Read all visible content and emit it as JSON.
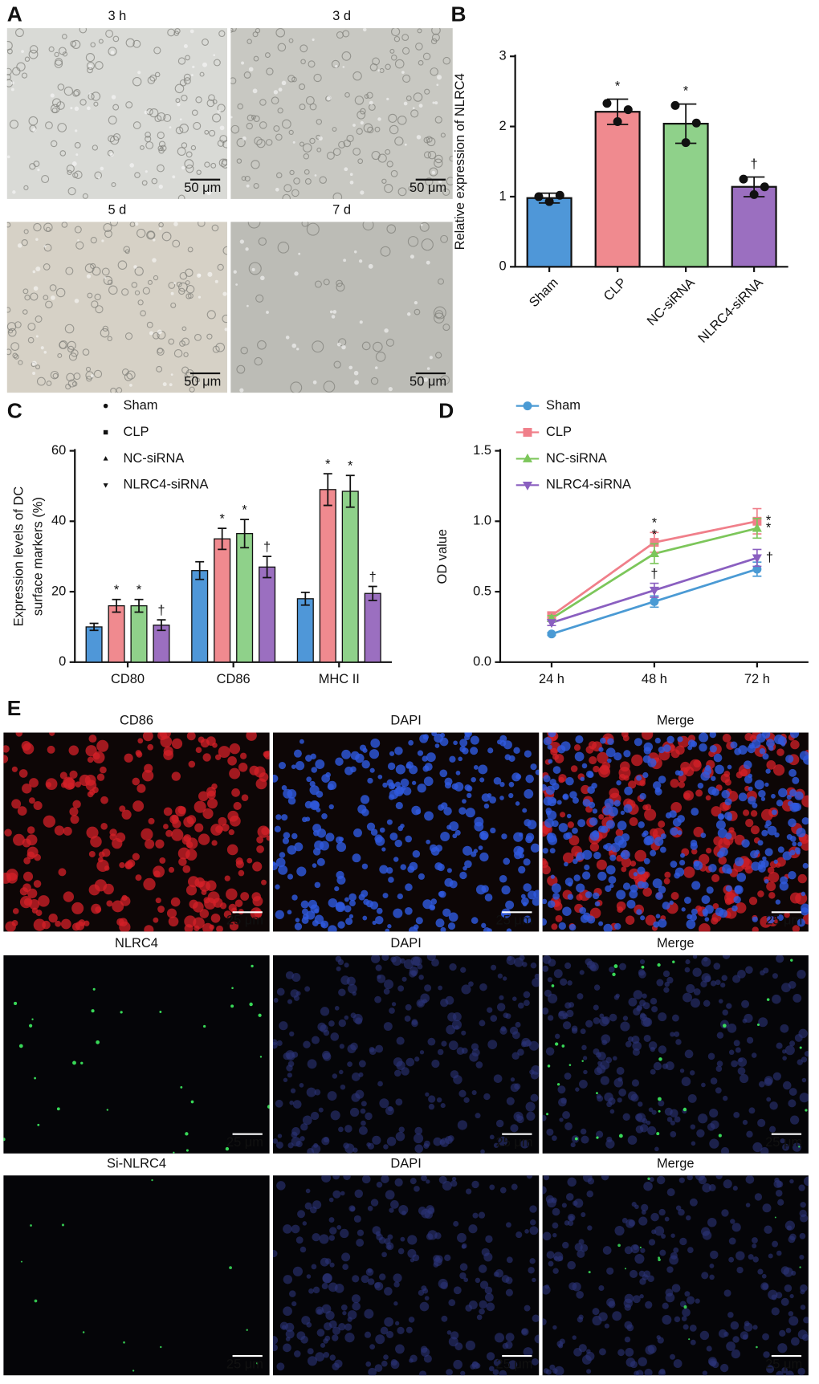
{
  "panel_a": {
    "label": "A",
    "images": [
      {
        "title": "3 h",
        "scale_bar": "50 μm"
      },
      {
        "title": "3 d",
        "scale_bar": "50 μm"
      },
      {
        "title": "5 d",
        "scale_bar": "50 μm"
      },
      {
        "title": "7 d",
        "scale_bar": "50 μm"
      }
    ]
  },
  "panel_e": {
    "label": "E",
    "rows": [
      [
        {
          "title": "CD86",
          "scale_bar": "25 μm"
        },
        {
          "title": "DAPI",
          "scale_bar": "25 μm"
        },
        {
          "title": "Merge",
          "scale_bar": "25 μm"
        }
      ],
      [
        {
          "title": "NLRC4",
          "scale_bar": "25 μm"
        },
        {
          "title": "DAPI",
          "scale_bar": "25 μm"
        },
        {
          "title": "Merge",
          "scale_bar": "25 μm"
        }
      ],
      [
        {
          "title": "Si-NLRC4",
          "scale_bar": "25 μm"
        },
        {
          "title": "DAPI",
          "scale_bar": "25 μm"
        },
        {
          "title": "Merge",
          "scale_bar": "25 μm"
        }
      ]
    ]
  },
  "chart_data": [
    {
      "type": "bar",
      "panel_label": "B",
      "y_label": [
        "Relative expression of NLRC4"
      ],
      "categories": [
        "Sham",
        "CLP",
        "NC-siRNA",
        "NLRC4-siRNA"
      ],
      "values": [
        0.98,
        2.21,
        2.04,
        1.14
      ],
      "errors": [
        0.07,
        0.18,
        0.28,
        0.14
      ],
      "points": [
        [
          1.0,
          0.93,
          1.02
        ],
        [
          2.33,
          2.07,
          2.24
        ],
        [
          2.3,
          1.77,
          2.05
        ],
        [
          1.25,
          1.03,
          1.14
        ]
      ],
      "significance": [
        null,
        "*",
        "*",
        "†"
      ],
      "colors": [
        "#4f97d8",
        "#f08a8f",
        "#8fd18a",
        "#9b6fc0"
      ],
      "ylim": [
        0,
        3
      ],
      "yticks": [
        0,
        1,
        2,
        3
      ]
    },
    {
      "type": "bar",
      "panel_label": "C",
      "y_label": [
        "Expression levels of DC",
        "surface markers (%)"
      ],
      "categories": [
        "CD80",
        "CD86",
        "MHC II"
      ],
      "series": [
        {
          "name": "Sham",
          "color": "#4f97d8",
          "marker": "circle",
          "values": [
            10,
            26,
            18
          ],
          "errors": [
            1,
            2.5,
            1.8
          ],
          "significance": [
            null,
            null,
            null
          ]
        },
        {
          "name": "CLP",
          "color": "#f08a8f",
          "marker": "square",
          "values": [
            16,
            35,
            49
          ],
          "errors": [
            1.8,
            3,
            4.5
          ],
          "significance": [
            "*",
            "*",
            "*"
          ]
        },
        {
          "name": "NC-siRNA",
          "color": "#8fd18a",
          "marker": "triangle-up",
          "values": [
            16,
            36.5,
            48.5
          ],
          "errors": [
            1.8,
            4,
            4.5
          ],
          "significance": [
            "*",
            "*",
            "*"
          ]
        },
        {
          "name": "NLRC4-siRNA",
          "color": "#9b6fc0",
          "marker": "triangle-down",
          "values": [
            10.5,
            27,
            19.5
          ],
          "errors": [
            1.5,
            3,
            2
          ],
          "significance": [
            "†",
            "†",
            "†"
          ]
        }
      ],
      "ylim": [
        0,
        60
      ],
      "yticks": [
        0,
        20,
        40,
        60
      ]
    },
    {
      "type": "line",
      "panel_label": "D",
      "y_label": [
        "OD value"
      ],
      "categories": [
        "24 h",
        "48 h",
        "72 h"
      ],
      "series": [
        {
          "name": "Sham",
          "color": "#4a9ad4",
          "marker": "circle",
          "values": [
            0.2,
            0.43,
            0.66
          ],
          "errors": [
            0.01,
            0.04,
            0.05
          ],
          "significance": [
            null,
            null,
            null
          ]
        },
        {
          "name": "CLP",
          "color": "#f07f8a",
          "marker": "square",
          "values": [
            0.33,
            0.85,
            1.0
          ],
          "errors": [
            0.02,
            0.07,
            0.09
          ],
          "significance": [
            null,
            "*",
            "*"
          ]
        },
        {
          "name": "NC-siRNA",
          "color": "#7cc65a",
          "marker": "triangle-up",
          "values": [
            0.31,
            0.77,
            0.95
          ],
          "errors": [
            0.02,
            0.07,
            0.07
          ],
          "significance": [
            null,
            "*",
            "*"
          ]
        },
        {
          "name": "NLRC4-siRNA",
          "color": "#8a5fc0",
          "marker": "triangle-down",
          "values": [
            0.28,
            0.51,
            0.74
          ],
          "errors": [
            0.02,
            0.05,
            0.06
          ],
          "significance": [
            null,
            "†",
            "†"
          ]
        }
      ],
      "ylim": [
        0,
        1.5
      ],
      "yticks": [
        {
          "value": 0,
          "label": "0.0"
        },
        0.5,
        {
          "value": 1,
          "label": "1.0"
        },
        1.5
      ]
    }
  ]
}
